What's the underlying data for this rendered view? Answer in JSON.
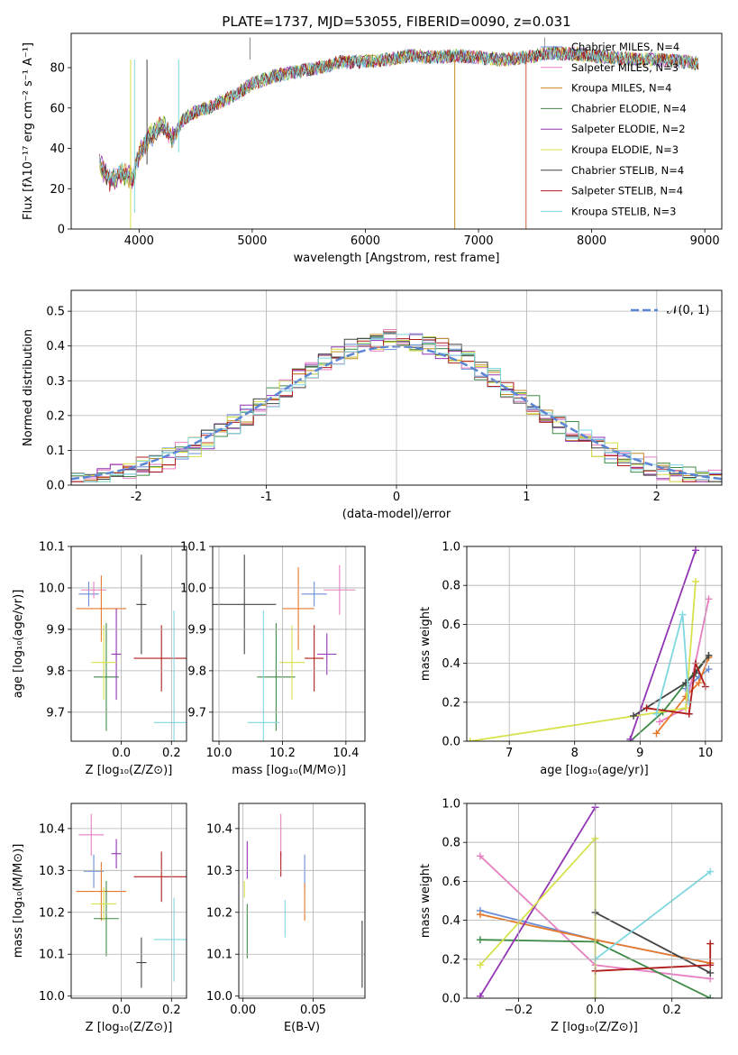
{
  "figure": {
    "title": "PLATE=1737, MJD=53055, FIBERID=0090, z=0.031"
  },
  "chart_data": [
    {
      "id": "spectrum",
      "type": "line",
      "xlabel": "wavelength [Angstrom, rest frame]",
      "ylabel": "Flux [fλ10⁻¹⁷ erg cm⁻² s⁻¹ A⁻¹]",
      "xlim": [
        3400,
        9150
      ],
      "ylim": [
        0,
        97
      ],
      "xticks": [
        4000,
        5000,
        6000,
        7000,
        8000,
        9000
      ],
      "yticks": [
        0,
        20,
        40,
        60,
        80
      ],
      "grid": false,
      "legend_position": "right",
      "continuum": {
        "x": [
          3650,
          3750,
          3850,
          3950,
          4000,
          4100,
          4200,
          4300,
          4400,
          4500,
          4600,
          4800,
          5000,
          5200,
          5400,
          5600,
          5800,
          6000,
          6200,
          6400,
          6600,
          6800,
          7000,
          7200,
          7400,
          7600,
          7800,
          8000,
          8200,
          8400,
          8600,
          8800,
          8950
        ],
        "y": [
          32,
          24,
          28,
          25,
          38,
          46,
          52,
          45,
          55,
          58,
          60,
          65,
          72,
          76,
          78,
          80,
          83,
          83,
          84,
          86,
          85,
          86,
          85,
          84,
          85,
          87,
          87,
          86,
          85,
          84,
          84,
          83,
          82
        ]
      },
      "series": [
        {
          "name": "Chabrier MILES, N_SSP=4",
          "color": "#6a8fd8"
        },
        {
          "name": "Salpeter MILES, N_SSP=3",
          "color": "#e77fc0"
        },
        {
          "name": "Kroupa MILES, N_SSP=4",
          "color": "#c48a23"
        },
        {
          "name": "Chabrier ELODIE, N_SSP=4",
          "color": "#3e8a46"
        },
        {
          "name": "Salpeter ELODIE, N_SSP=2",
          "color": "#9334b4"
        },
        {
          "name": "Kroupa ELODIE, N_SSP=3",
          "color": "#d7e24a"
        },
        {
          "name": "Chabrier STELIB, N_SSP=4",
          "color": "#444444"
        },
        {
          "name": "Salpeter STELIB, N_SSP=4",
          "color": "#b01c1c"
        },
        {
          "name": "Kroupa STELIB, N_SSP=3",
          "color": "#7fd8e0"
        }
      ]
    },
    {
      "id": "residuals",
      "type": "line",
      "xlabel": "(data-model)/error",
      "ylabel": "Normed distribution",
      "xlim": [
        -2.5,
        2.5
      ],
      "ylim": [
        0,
        0.56
      ],
      "xticks": [
        -2,
        -1,
        0,
        1,
        2
      ],
      "yticks": [
        0.0,
        0.1,
        0.2,
        0.3,
        0.4,
        0.5
      ],
      "grid": true,
      "legend": "𝒩(0, 1)",
      "legend_position": "top-right",
      "gaussian_color": "#5b86d4",
      "hist_bin_width": 0.1,
      "hist_colors": [
        "#6a8fd8",
        "#e77fc0",
        "#c48a23",
        "#3e8a46",
        "#9334b4",
        "#d7e24a",
        "#444444",
        "#b01c1c",
        "#7fd8e0"
      ]
    },
    {
      "id": "age_vs_Z",
      "type": "scatter",
      "xlabel": "Z [log₁₀(Z/Z⊙)]",
      "ylabel": "age  [log₁₀(age/yr)]",
      "xlim": [
        -0.2,
        0.26
      ],
      "ylim": [
        9.63,
        10.1
      ],
      "xticks": [
        0.0,
        0.2
      ],
      "xticklabels": [
        "0.0",
        "0.2"
      ],
      "yticks": [
        9.7,
        9.8,
        9.9,
        10.0,
        10.1
      ],
      "grid": true,
      "points": [
        {
          "x": -0.13,
          "y": 9.985,
          "xerr": 0.04,
          "yerr": 0.03,
          "color": "#6a8fd8"
        },
        {
          "x": -0.11,
          "y": 9.995,
          "xerr": 0.05,
          "yerr": 0.02,
          "color": "#e77fc0"
        },
        {
          "x": -0.08,
          "y": 9.95,
          "xerr": 0.1,
          "yerr": 0.08,
          "color": "#e8792b"
        },
        {
          "x": -0.06,
          "y": 9.785,
          "xerr": 0.05,
          "yerr": 0.13,
          "color": "#3e8a46"
        },
        {
          "x": -0.02,
          "y": 9.84,
          "xerr": 0.02,
          "yerr": 0.11,
          "color": "#9334b4"
        },
        {
          "x": -0.07,
          "y": 9.82,
          "xerr": 0.05,
          "yerr": 0.09,
          "color": "#d7e24a"
        },
        {
          "x": 0.08,
          "y": 9.96,
          "xerr": 0.02,
          "yerr": 0.12,
          "color": "#444444"
        },
        {
          "x": 0.16,
          "y": 9.83,
          "xerr": 0.11,
          "yerr": 0.08,
          "color": "#b01c1c"
        },
        {
          "x": 0.21,
          "y": 9.675,
          "xerr": 0.08,
          "yerr": 0.27,
          "color": "#7fd8e0"
        }
      ]
    },
    {
      "id": "age_vs_mass",
      "type": "scatter",
      "xlabel": "mass [log₁₀(M/M⊙)]",
      "xlim": [
        9.98,
        10.46
      ],
      "ylim": [
        9.63,
        10.1
      ],
      "xticks": [
        10.0,
        10.2,
        10.4
      ],
      "xticklabels": [
        "10.0",
        "10.2",
        "10.4"
      ],
      "yticks": [
        9.7,
        9.8,
        9.9,
        10.0,
        10.1
      ],
      "grid": true,
      "points": [
        {
          "x": 10.3,
          "y": 9.985,
          "xerr": 0.04,
          "yerr": 0.03,
          "color": "#6a8fd8"
        },
        {
          "x": 10.38,
          "y": 9.995,
          "xerr": 0.05,
          "yerr": 0.06,
          "color": "#e77fc0"
        },
        {
          "x": 10.25,
          "y": 9.95,
          "xerr": 0.05,
          "yerr": 0.1,
          "color": "#e8792b"
        },
        {
          "x": 10.18,
          "y": 9.785,
          "xerr": 0.06,
          "yerr": 0.13,
          "color": "#3e8a46"
        },
        {
          "x": 10.34,
          "y": 9.84,
          "xerr": 0.03,
          "yerr": 0.05,
          "color": "#9334b4"
        },
        {
          "x": 10.23,
          "y": 9.82,
          "xerr": 0.04,
          "yerr": 0.09,
          "color": "#d7e24a"
        },
        {
          "x": 10.08,
          "y": 9.96,
          "xerr": 0.1,
          "yerr": 0.12,
          "color": "#444444"
        },
        {
          "x": 10.3,
          "y": 9.83,
          "xerr": 0.03,
          "yerr": 0.08,
          "color": "#b01c1c"
        },
        {
          "x": 10.14,
          "y": 9.675,
          "xerr": 0.05,
          "yerr": 0.27,
          "color": "#7fd8e0"
        }
      ]
    },
    {
      "id": "weight_vs_age",
      "type": "line",
      "xlabel": "age  [log₁₀(age/yr)]",
      "ylabel": "mass weight",
      "xlim": [
        6.35,
        10.25
      ],
      "ylim": [
        0,
        1
      ],
      "xticks": [
        7,
        8,
        9,
        10
      ],
      "yticks": [
        0.0,
        0.2,
        0.4,
        0.6,
        0.8,
        1.0
      ],
      "grid": true,
      "series": [
        {
          "color": "#6a8fd8",
          "x": [
            9.7,
            9.9,
            10.05
          ],
          "y": [
            0.27,
            0.33,
            0.37
          ]
        },
        {
          "color": "#e77fc0",
          "x": [
            9.3,
            9.7,
            10.05
          ],
          "y": [
            0.1,
            0.17,
            0.73
          ]
        },
        {
          "color": "#e8792b",
          "x": [
            9.25,
            9.7,
            9.9,
            10.05
          ],
          "y": [
            0.04,
            0.23,
            0.3,
            0.43
          ]
        },
        {
          "color": "#3e8a46",
          "x": [
            8.85,
            9.35,
            9.7,
            10.05
          ],
          "y": [
            0.0,
            0.15,
            0.3,
            0.44
          ]
        },
        {
          "color": "#9334b4",
          "x": [
            8.85,
            9.85
          ],
          "y": [
            0.01,
            0.98
          ]
        },
        {
          "color": "#d7e24a",
          "x": [
            6.4,
            9.7,
            9.85
          ],
          "y": [
            0.0,
            0.17,
            0.82
          ]
        },
        {
          "color": "#444444",
          "x": [
            8.9,
            9.7,
            9.85,
            10.05
          ],
          "y": [
            0.13,
            0.3,
            0.35,
            0.44
          ]
        },
        {
          "color": "#b01c1c",
          "x": [
            9.1,
            9.75,
            9.85,
            10.0
          ],
          "y": [
            0.17,
            0.14,
            0.4,
            0.28
          ]
        },
        {
          "color": "#7fd8e0",
          "x": [
            9.25,
            9.65,
            9.75
          ],
          "y": [
            0.14,
            0.65,
            0.2
          ]
        }
      ]
    },
    {
      "id": "mass_vs_Z",
      "type": "scatter",
      "xlabel": "Z [log₁₀(Z/Z⊙)]",
      "ylabel": "mass [log₁₀(M/M⊙)]",
      "xlim": [
        -0.2,
        0.26
      ],
      "ylim": [
        9.995,
        10.46
      ],
      "xticks": [
        0.0,
        0.2
      ],
      "xticklabels": [
        "0.0",
        "0.2"
      ],
      "yticks": [
        10.0,
        10.1,
        10.2,
        10.3,
        10.4
      ],
      "grid": true,
      "points": [
        {
          "x": -0.11,
          "y": 10.298,
          "xerr": 0.04,
          "yerr": 0.04,
          "color": "#6a8fd8"
        },
        {
          "x": -0.12,
          "y": 10.385,
          "xerr": 0.05,
          "yerr": 0.05,
          "color": "#e77fc0"
        },
        {
          "x": -0.08,
          "y": 10.25,
          "xerr": 0.1,
          "yerr": 0.07,
          "color": "#e8792b"
        },
        {
          "x": -0.06,
          "y": 10.185,
          "xerr": 0.05,
          "yerr": 0.09,
          "color": "#3e8a46"
        },
        {
          "x": -0.02,
          "y": 10.34,
          "xerr": 0.02,
          "yerr": 0.035,
          "color": "#9334b4"
        },
        {
          "x": -0.07,
          "y": 10.22,
          "xerr": 0.05,
          "yerr": 0.04,
          "color": "#d7e24a"
        },
        {
          "x": 0.08,
          "y": 10.08,
          "xerr": 0.02,
          "yerr": 0.06,
          "color": "#444444"
        },
        {
          "x": 0.16,
          "y": 10.285,
          "xerr": 0.11,
          "yerr": 0.06,
          "color": "#b01c1c"
        },
        {
          "x": 0.21,
          "y": 10.135,
          "xerr": 0.08,
          "yerr": 0.1,
          "color": "#7fd8e0"
        }
      ]
    },
    {
      "id": "mass_vs_EBV",
      "type": "scatter",
      "xlabel": "E(B-V)",
      "xlim": [
        -0.003,
        0.087
      ],
      "ylim": [
        9.995,
        10.46
      ],
      "xticks": [
        0.0,
        0.05
      ],
      "xticklabels": [
        "0.00",
        "0.05"
      ],
      "yticks": [
        10.0,
        10.1,
        10.2,
        10.3,
        10.4
      ],
      "grid": true,
      "points": [
        {
          "x": 0.044,
          "y": 10.298,
          "xerr": 0,
          "yerr": 0.04,
          "color": "#6a8fd8"
        },
        {
          "x": 0.027,
          "y": 10.385,
          "xerr": 0,
          "yerr": 0.05,
          "color": "#e77fc0"
        },
        {
          "x": 0.044,
          "y": 10.225,
          "xerr": 0,
          "yerr": 0.045,
          "color": "#e8792b"
        },
        {
          "x": 0.003,
          "y": 10.155,
          "xerr": 0,
          "yerr": 0.065,
          "color": "#3e8a46"
        },
        {
          "x": 0.003,
          "y": 10.325,
          "xerr": 0,
          "yerr": 0.045,
          "color": "#9334b4"
        },
        {
          "x": 0.001,
          "y": 10.255,
          "xerr": 0,
          "yerr": 0.02,
          "color": "#d7e24a"
        },
        {
          "x": 0.085,
          "y": 10.1,
          "xerr": 0,
          "yerr": 0.08,
          "color": "#444444"
        },
        {
          "x": 0.027,
          "y": 10.315,
          "xerr": 0,
          "yerr": 0.03,
          "color": "#b01c1c"
        },
        {
          "x": 0.03,
          "y": 10.185,
          "xerr": 0,
          "yerr": 0.045,
          "color": "#7fd8e0"
        }
      ]
    },
    {
      "id": "weight_vs_Z",
      "type": "line",
      "xlabel": "Z [log₁₀(Z/Z⊙)]",
      "ylabel": "mass weight",
      "xlim": [
        -0.335,
        0.33
      ],
      "ylim": [
        0,
        1
      ],
      "xticks": [
        -0.2,
        0.0,
        0.2
      ],
      "xticklabels": [
        "−0.2",
        "0.0",
        "0.2"
      ],
      "yticks": [
        0.0,
        0.2,
        0.4,
        0.6,
        0.8,
        1.0
      ],
      "grid": true,
      "series": [
        {
          "color": "#6a8fd8",
          "x": [
            -0.3,
            0.0,
            0.3
          ],
          "y": [
            0.45,
            0.3,
            0.18
          ]
        },
        {
          "color": "#e77fc0",
          "x": [
            -0.3,
            0.0,
            0.3
          ],
          "y": [
            0.73,
            0.17,
            0.1
          ]
        },
        {
          "color": "#e8792b",
          "x": [
            -0.3,
            0.0,
            0.3
          ],
          "y": [
            0.43,
            0.3,
            0.18
          ]
        },
        {
          "color": "#3e8a46",
          "x": [
            -0.3,
            0.0,
            0.3
          ],
          "y": [
            0.3,
            0.29,
            0.0
          ]
        },
        {
          "color": "#9334b4",
          "x": [
            -0.3,
            0.0
          ],
          "y": [
            0.01,
            0.98
          ]
        },
        {
          "color": "#d7e24a",
          "x": [
            -0.3,
            0.0,
            0.0
          ],
          "y": [
            0.17,
            0.82,
            0.0
          ]
        },
        {
          "color": "#444444",
          "x": [
            0.0,
            0.3
          ],
          "y": [
            0.44,
            0.13
          ]
        },
        {
          "color": "#b01c1c",
          "x": [
            0.0,
            0.3,
            0.3
          ],
          "y": [
            0.14,
            0.17,
            0.28
          ]
        },
        {
          "color": "#7fd8e0",
          "x": [
            0.0,
            0.3
          ],
          "y": [
            0.2,
            0.65
          ]
        }
      ]
    }
  ]
}
